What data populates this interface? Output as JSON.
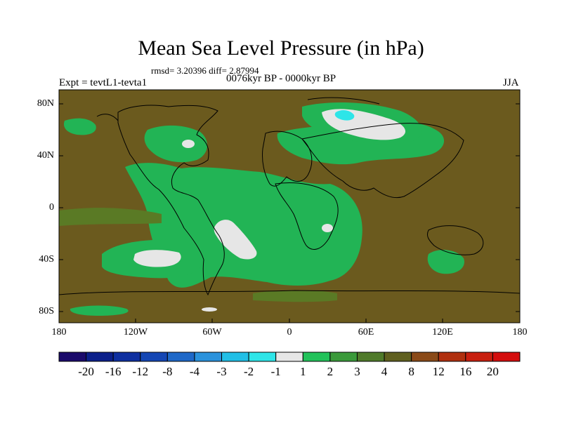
{
  "title": "Mean Sea Level Pressure (in hPa)",
  "stats": "rmsd= 3.20396 diff= 2.87994",
  "expt": "Expt = tevtL1-tevta1",
  "period": "0076kyr BP - 0000kyr BP",
  "season": "JJA",
  "lat_labels": [
    "80N",
    "40N",
    "0",
    "40S",
    "80S"
  ],
  "lon_labels": [
    "180",
    "120W",
    "60W",
    "0",
    "60E",
    "120E",
    "180"
  ],
  "colorbar": {
    "colors": [
      "#1a0a6b",
      "#0b1f8a",
      "#0e2fa0",
      "#1446b4",
      "#1e68c8",
      "#2a92dc",
      "#21bfe6",
      "#2ee5e8",
      "#e6e6e6",
      "#22c25a",
      "#3a9a3a",
      "#4f7a2a",
      "#5f5f1f",
      "#8a4a18",
      "#b0300f",
      "#c81f0f",
      "#d40d0d"
    ],
    "labels": [
      "-20",
      "-16",
      "-12",
      "-8",
      "-4",
      "-3",
      "-2",
      "-1",
      "1",
      "2",
      "3",
      "4",
      "8",
      "12",
      "16",
      "20"
    ]
  },
  "map_colors": {
    "base": "#6b5a1e",
    "green": "#22b455",
    "light_green": "#3fc95f",
    "white": "#e6e6e6",
    "cyan": "#2ee5e8",
    "olive": "#5a7a25"
  }
}
